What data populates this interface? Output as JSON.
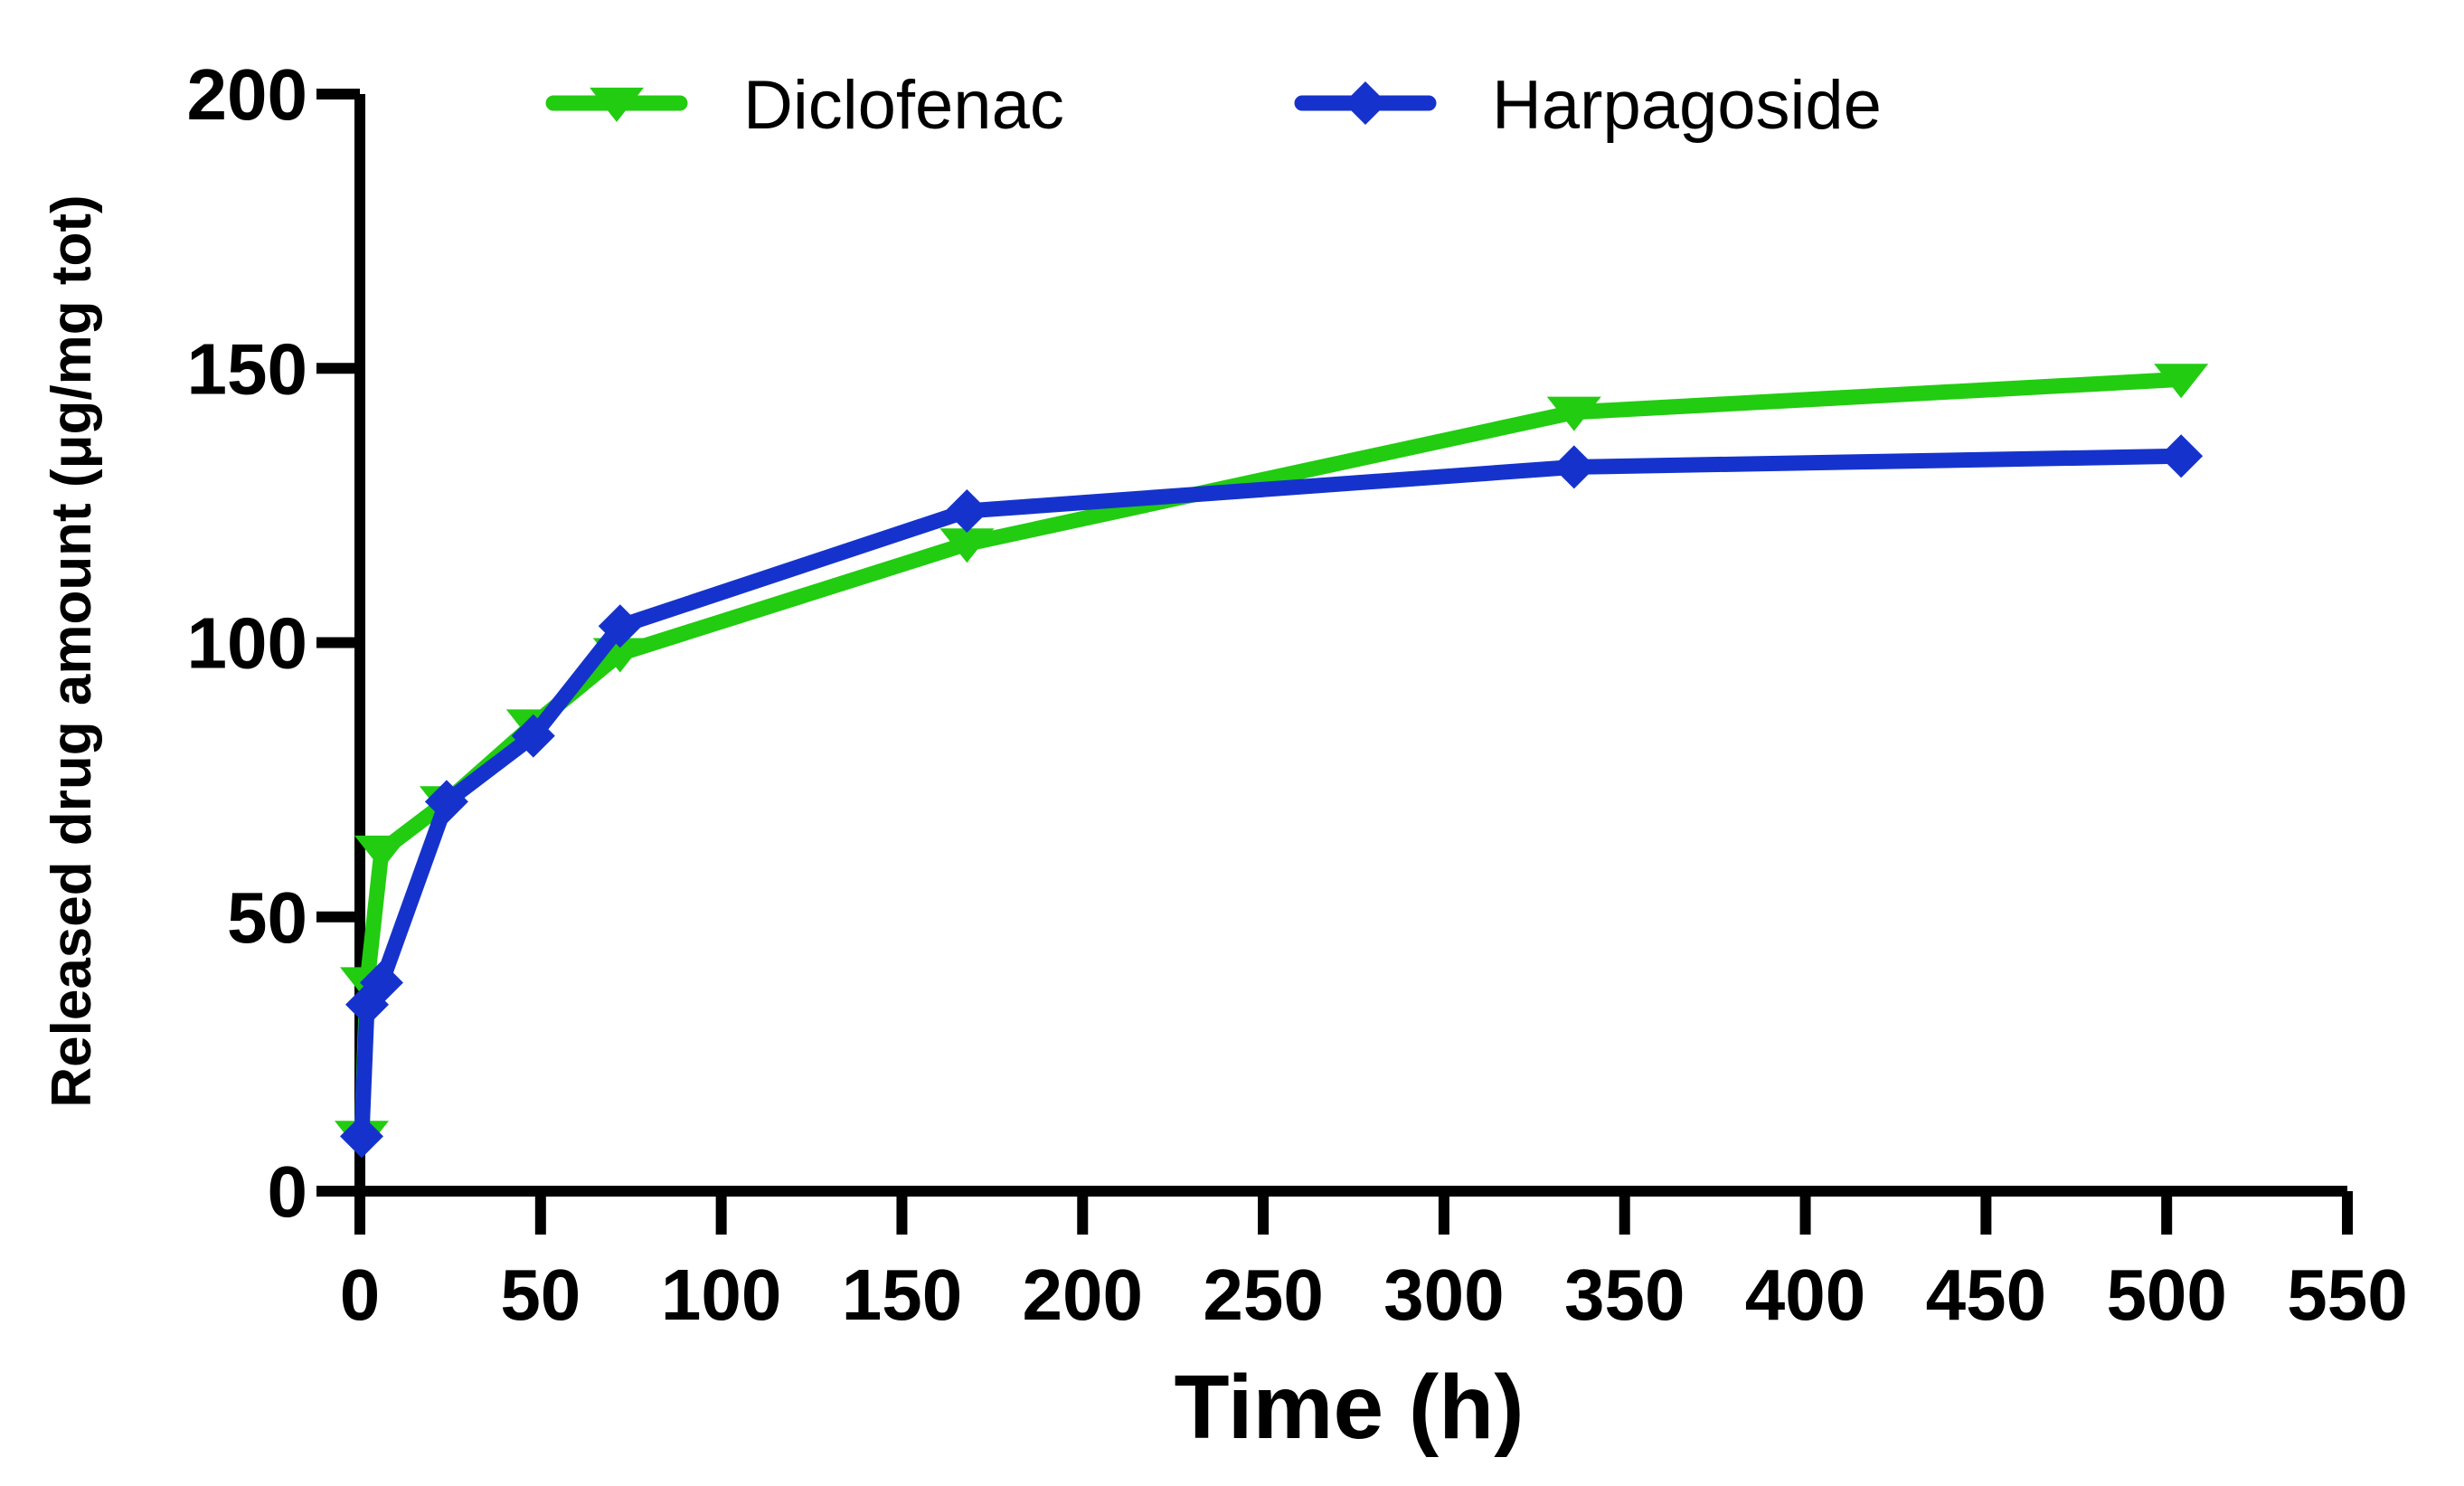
{
  "chart_data": {
    "type": "line",
    "xlabel": "Time (h)",
    "ylabel": "Released drug amount (μg/mg tot)",
    "xlim": [
      0,
      550
    ],
    "ylim": [
      0,
      200
    ],
    "xticks": [
      0,
      50,
      100,
      150,
      200,
      250,
      300,
      350,
      400,
      450,
      500,
      550
    ],
    "yticks": [
      0,
      50,
      100,
      150,
      200
    ],
    "legend_position": "top",
    "series": [
      {
        "name": "Diclofenac",
        "color": "#22cc11",
        "marker": "triangle-down",
        "x": [
          0.5,
          2,
          6,
          24,
          48,
          72,
          168,
          336,
          504
        ],
        "y": [
          10,
          38,
          62,
          71,
          85,
          98,
          118,
          142,
          148
        ]
      },
      {
        "name": "Harpagoside",
        "color": "#1533cc",
        "marker": "diamond",
        "x": [
          0.5,
          2,
          6,
          24,
          48,
          72,
          168,
          336,
          504
        ],
        "y": [
          10,
          34,
          38,
          71,
          83,
          103,
          124,
          132,
          134
        ]
      }
    ]
  }
}
